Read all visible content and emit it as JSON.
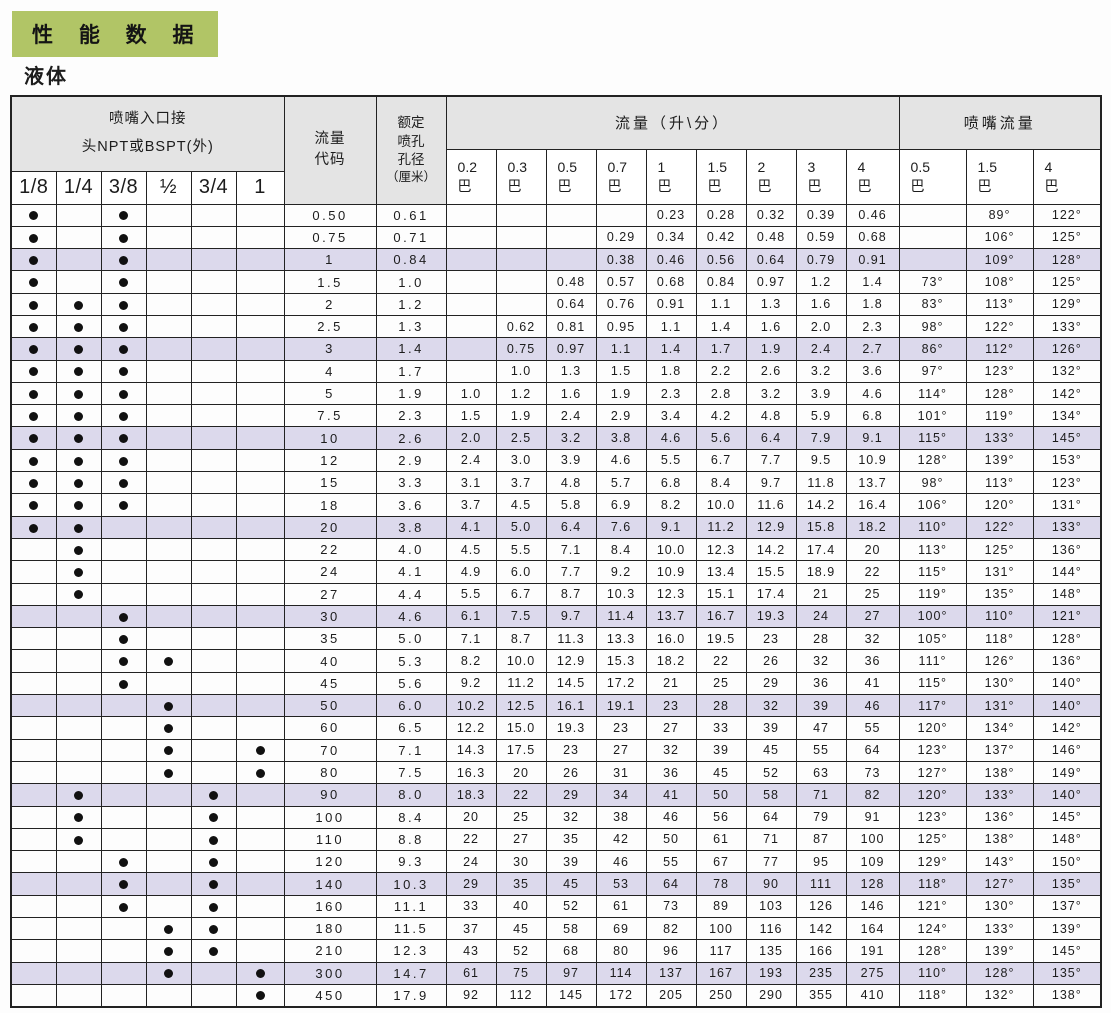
{
  "page": {
    "title": "性 能 数 据",
    "subtitle": "液体"
  },
  "colors": {
    "banner_green": "#b1c566",
    "row_highlight": "#dcd9ec",
    "header_gray": "#e4e4e4"
  },
  "table": {
    "header": {
      "inlet_line1": "喷嘴入口接",
      "inlet_line2": "头NPT或BSPT(外)",
      "code_line1": "流量",
      "code_line2": "代码",
      "orifice_line1": "额定",
      "orifice_line2": "喷孔",
      "orifice_line3": "孔径",
      "orifice_line4": "（厘米）",
      "flow_span_label": "流量（升\\分）",
      "angle_span_label": "喷嘴流量",
      "bar_unit": "巴",
      "thread_sizes": [
        "1/8",
        "1/4",
        "3/8",
        "½",
        "3/4",
        "1"
      ],
      "flow_pressures": [
        "0.2",
        "0.3",
        "0.5",
        "0.7",
        "1",
        "1.5",
        "2",
        "3",
        "4"
      ],
      "angle_pressures": [
        "0.5",
        "1.5",
        "4"
      ]
    },
    "rows": [
      {
        "code": "0.50",
        "orifice": "0.61",
        "threads": [
          1,
          0,
          1,
          0,
          0,
          0
        ],
        "flows": [
          "",
          "",
          "",
          "",
          "0.23",
          "0.28",
          "0.32",
          "0.39",
          "0.46"
        ],
        "angles": [
          "",
          "89°",
          "122°"
        ],
        "highlight": false
      },
      {
        "code": "0.75",
        "orifice": "0.71",
        "threads": [
          1,
          0,
          1,
          0,
          0,
          0
        ],
        "flows": [
          "",
          "",
          "",
          "0.29",
          "0.34",
          "0.42",
          "0.48",
          "0.59",
          "0.68"
        ],
        "angles": [
          "",
          "106°",
          "125°"
        ],
        "highlight": false
      },
      {
        "code": "1",
        "orifice": "0.84",
        "threads": [
          1,
          0,
          1,
          0,
          0,
          0
        ],
        "flows": [
          "",
          "",
          "",
          "0.38",
          "0.46",
          "0.56",
          "0.64",
          "0.79",
          "0.91"
        ],
        "angles": [
          "",
          "109°",
          "128°"
        ],
        "highlight": true
      },
      {
        "code": "1.5",
        "orifice": "1.0",
        "threads": [
          1,
          0,
          1,
          0,
          0,
          0
        ],
        "flows": [
          "",
          "",
          "0.48",
          "0.57",
          "0.68",
          "0.84",
          "0.97",
          "1.2",
          "1.4"
        ],
        "angles": [
          "73°",
          "108°",
          "125°"
        ],
        "highlight": false
      },
      {
        "code": "2",
        "orifice": "1.2",
        "threads": [
          1,
          1,
          1,
          0,
          0,
          0
        ],
        "flows": [
          "",
          "",
          "0.64",
          "0.76",
          "0.91",
          "1.1",
          "1.3",
          "1.6",
          "1.8"
        ],
        "angles": [
          "83°",
          "113°",
          "129°"
        ],
        "highlight": false
      },
      {
        "code": "2.5",
        "orifice": "1.3",
        "threads": [
          1,
          1,
          1,
          0,
          0,
          0
        ],
        "flows": [
          "",
          "0.62",
          "0.81",
          "0.95",
          "1.1",
          "1.4",
          "1.6",
          "2.0",
          "2.3"
        ],
        "angles": [
          "98°",
          "122°",
          "133°"
        ],
        "highlight": false
      },
      {
        "code": "3",
        "orifice": "1.4",
        "threads": [
          1,
          1,
          1,
          0,
          0,
          0
        ],
        "flows": [
          "",
          "0.75",
          "0.97",
          "1.1",
          "1.4",
          "1.7",
          "1.9",
          "2.4",
          "2.7"
        ],
        "angles": [
          "86°",
          "112°",
          "126°"
        ],
        "highlight": true
      },
      {
        "code": "4",
        "orifice": "1.7",
        "threads": [
          1,
          1,
          1,
          0,
          0,
          0
        ],
        "flows": [
          "",
          "1.0",
          "1.3",
          "1.5",
          "1.8",
          "2.2",
          "2.6",
          "3.2",
          "3.6"
        ],
        "angles": [
          "97°",
          "123°",
          "132°"
        ],
        "highlight": false
      },
      {
        "code": "5",
        "orifice": "1.9",
        "threads": [
          1,
          1,
          1,
          0,
          0,
          0
        ],
        "flows": [
          "1.0",
          "1.2",
          "1.6",
          "1.9",
          "2.3",
          "2.8",
          "3.2",
          "3.9",
          "4.6"
        ],
        "angles": [
          "114°",
          "128°",
          "142°"
        ],
        "highlight": false
      },
      {
        "code": "7.5",
        "orifice": "2.3",
        "threads": [
          1,
          1,
          1,
          0,
          0,
          0
        ],
        "flows": [
          "1.5",
          "1.9",
          "2.4",
          "2.9",
          "3.4",
          "4.2",
          "4.8",
          "5.9",
          "6.8"
        ],
        "angles": [
          "101°",
          "119°",
          "134°"
        ],
        "highlight": false
      },
      {
        "code": "10",
        "orifice": "2.6",
        "threads": [
          1,
          1,
          1,
          0,
          0,
          0
        ],
        "flows": [
          "2.0",
          "2.5",
          "3.2",
          "3.8",
          "4.6",
          "5.6",
          "6.4",
          "7.9",
          "9.1"
        ],
        "angles": [
          "115°",
          "133°",
          "145°"
        ],
        "highlight": true
      },
      {
        "code": "12",
        "orifice": "2.9",
        "threads": [
          1,
          1,
          1,
          0,
          0,
          0
        ],
        "flows": [
          "2.4",
          "3.0",
          "3.9",
          "4.6",
          "5.5",
          "6.7",
          "7.7",
          "9.5",
          "10.9"
        ],
        "angles": [
          "128°",
          "139°",
          "153°"
        ],
        "highlight": false
      },
      {
        "code": "15",
        "orifice": "3.3",
        "threads": [
          1,
          1,
          1,
          0,
          0,
          0
        ],
        "flows": [
          "3.1",
          "3.7",
          "4.8",
          "5.7",
          "6.8",
          "8.4",
          "9.7",
          "11.8",
          "13.7"
        ],
        "angles": [
          "98°",
          "113°",
          "123°"
        ],
        "highlight": false
      },
      {
        "code": "18",
        "orifice": "3.6",
        "threads": [
          1,
          1,
          1,
          0,
          0,
          0
        ],
        "flows": [
          "3.7",
          "4.5",
          "5.8",
          "6.9",
          "8.2",
          "10.0",
          "11.6",
          "14.2",
          "16.4"
        ],
        "angles": [
          "106°",
          "120°",
          "131°"
        ],
        "highlight": false
      },
      {
        "code": "20",
        "orifice": "3.8",
        "threads": [
          1,
          1,
          0,
          0,
          0,
          0
        ],
        "flows": [
          "4.1",
          "5.0",
          "6.4",
          "7.6",
          "9.1",
          "11.2",
          "12.9",
          "15.8",
          "18.2"
        ],
        "angles": [
          "110°",
          "122°",
          "133°"
        ],
        "highlight": true
      },
      {
        "code": "22",
        "orifice": "4.0",
        "threads": [
          0,
          1,
          0,
          0,
          0,
          0
        ],
        "flows": [
          "4.5",
          "5.5",
          "7.1",
          "8.4",
          "10.0",
          "12.3",
          "14.2",
          "17.4",
          "20"
        ],
        "angles": [
          "113°",
          "125°",
          "136°"
        ],
        "highlight": false
      },
      {
        "code": "24",
        "orifice": "4.1",
        "threads": [
          0,
          1,
          0,
          0,
          0,
          0
        ],
        "flows": [
          "4.9",
          "6.0",
          "7.7",
          "9.2",
          "10.9",
          "13.4",
          "15.5",
          "18.9",
          "22"
        ],
        "angles": [
          "115°",
          "131°",
          "144°"
        ],
        "highlight": false
      },
      {
        "code": "27",
        "orifice": "4.4",
        "threads": [
          0,
          1,
          0,
          0,
          0,
          0
        ],
        "flows": [
          "5.5",
          "6.7",
          "8.7",
          "10.3",
          "12.3",
          "15.1",
          "17.4",
          "21",
          "25"
        ],
        "angles": [
          "119°",
          "135°",
          "148°"
        ],
        "highlight": false
      },
      {
        "code": "30",
        "orifice": "4.6",
        "threads": [
          0,
          0,
          1,
          0,
          0,
          0
        ],
        "flows": [
          "6.1",
          "7.5",
          "9.7",
          "11.4",
          "13.7",
          "16.7",
          "19.3",
          "24",
          "27"
        ],
        "angles": [
          "100°",
          "110°",
          "121°"
        ],
        "highlight": true
      },
      {
        "code": "35",
        "orifice": "5.0",
        "threads": [
          0,
          0,
          1,
          0,
          0,
          0
        ],
        "flows": [
          "7.1",
          "8.7",
          "11.3",
          "13.3",
          "16.0",
          "19.5",
          "23",
          "28",
          "32"
        ],
        "angles": [
          "105°",
          "118°",
          "128°"
        ],
        "highlight": false
      },
      {
        "code": "40",
        "orifice": "5.3",
        "threads": [
          0,
          0,
          1,
          1,
          0,
          0
        ],
        "flows": [
          "8.2",
          "10.0",
          "12.9",
          "15.3",
          "18.2",
          "22",
          "26",
          "32",
          "36"
        ],
        "angles": [
          "111°",
          "126°",
          "136°"
        ],
        "highlight": false
      },
      {
        "code": "45",
        "orifice": "5.6",
        "threads": [
          0,
          0,
          1,
          0,
          0,
          0
        ],
        "flows": [
          "9.2",
          "11.2",
          "14.5",
          "17.2",
          "21",
          "25",
          "29",
          "36",
          "41"
        ],
        "angles": [
          "115°",
          "130°",
          "140°"
        ],
        "highlight": false
      },
      {
        "code": "50",
        "orifice": "6.0",
        "threads": [
          0,
          0,
          0,
          1,
          0,
          0
        ],
        "flows": [
          "10.2",
          "12.5",
          "16.1",
          "19.1",
          "23",
          "28",
          "32",
          "39",
          "46"
        ],
        "angles": [
          "117°",
          "131°",
          "140°"
        ],
        "highlight": true
      },
      {
        "code": "60",
        "orifice": "6.5",
        "threads": [
          0,
          0,
          0,
          1,
          0,
          0
        ],
        "flows": [
          "12.2",
          "15.0",
          "19.3",
          "23",
          "27",
          "33",
          "39",
          "47",
          "55"
        ],
        "angles": [
          "120°",
          "134°",
          "142°"
        ],
        "highlight": false
      },
      {
        "code": "70",
        "orifice": "7.1",
        "threads": [
          0,
          0,
          0,
          1,
          0,
          1
        ],
        "flows": [
          "14.3",
          "17.5",
          "23",
          "27",
          "32",
          "39",
          "45",
          "55",
          "64"
        ],
        "angles": [
          "123°",
          "137°",
          "146°"
        ],
        "highlight": false
      },
      {
        "code": "80",
        "orifice": "7.5",
        "threads": [
          0,
          0,
          0,
          1,
          0,
          1
        ],
        "flows": [
          "16.3",
          "20",
          "26",
          "31",
          "36",
          "45",
          "52",
          "63",
          "73"
        ],
        "angles": [
          "127°",
          "138°",
          "149°"
        ],
        "highlight": false
      },
      {
        "code": "90",
        "orifice": "8.0",
        "threads": [
          0,
          1,
          0,
          0,
          1,
          0
        ],
        "flows": [
          "18.3",
          "22",
          "29",
          "34",
          "41",
          "50",
          "58",
          "71",
          "82"
        ],
        "angles": [
          "120°",
          "133°",
          "140°"
        ],
        "highlight": true
      },
      {
        "code": "100",
        "orifice": "8.4",
        "threads": [
          0,
          1,
          0,
          0,
          1,
          0
        ],
        "flows": [
          "20",
          "25",
          "32",
          "38",
          "46",
          "56",
          "64",
          "79",
          "91"
        ],
        "angles": [
          "123°",
          "136°",
          "145°"
        ],
        "highlight": false
      },
      {
        "code": "110",
        "orifice": "8.8",
        "threads": [
          0,
          1,
          0,
          0,
          1,
          0
        ],
        "flows": [
          "22",
          "27",
          "35",
          "42",
          "50",
          "61",
          "71",
          "87",
          "100"
        ],
        "angles": [
          "125°",
          "138°",
          "148°"
        ],
        "highlight": false
      },
      {
        "code": "120",
        "orifice": "9.3",
        "threads": [
          0,
          0,
          1,
          0,
          1,
          0
        ],
        "flows": [
          "24",
          "30",
          "39",
          "46",
          "55",
          "67",
          "77",
          "95",
          "109"
        ],
        "angles": [
          "129°",
          "143°",
          "150°"
        ],
        "highlight": false
      },
      {
        "code": "140",
        "orifice": "10.3",
        "threads": [
          0,
          0,
          1,
          0,
          1,
          0
        ],
        "flows": [
          "29",
          "35",
          "45",
          "53",
          "64",
          "78",
          "90",
          "111",
          "128"
        ],
        "angles": [
          "118°",
          "127°",
          "135°"
        ],
        "highlight": true
      },
      {
        "code": "160",
        "orifice": "11.1",
        "threads": [
          0,
          0,
          1,
          0,
          1,
          0
        ],
        "flows": [
          "33",
          "40",
          "52",
          "61",
          "73",
          "89",
          "103",
          "126",
          "146"
        ],
        "angles": [
          "121°",
          "130°",
          "137°"
        ],
        "highlight": false
      },
      {
        "code": "180",
        "orifice": "11.5",
        "threads": [
          0,
          0,
          0,
          1,
          1,
          0
        ],
        "flows": [
          "37",
          "45",
          "58",
          "69",
          "82",
          "100",
          "116",
          "142",
          "164"
        ],
        "angles": [
          "124°",
          "133°",
          "139°"
        ],
        "highlight": false
      },
      {
        "code": "210",
        "orifice": "12.3",
        "threads": [
          0,
          0,
          0,
          1,
          1,
          0
        ],
        "flows": [
          "43",
          "52",
          "68",
          "80",
          "96",
          "117",
          "135",
          "166",
          "191"
        ],
        "angles": [
          "128°",
          "139°",
          "145°"
        ],
        "highlight": false
      },
      {
        "code": "300",
        "orifice": "14.7",
        "threads": [
          0,
          0,
          0,
          1,
          0,
          1
        ],
        "flows": [
          "61",
          "75",
          "97",
          "114",
          "137",
          "167",
          "193",
          "235",
          "275"
        ],
        "angles": [
          "110°",
          "128°",
          "135°"
        ],
        "highlight": true
      },
      {
        "code": "450",
        "orifice": "17.9",
        "threads": [
          0,
          0,
          0,
          0,
          0,
          1
        ],
        "flows": [
          "92",
          "112",
          "145",
          "172",
          "205",
          "250",
          "290",
          "355",
          "410"
        ],
        "angles": [
          "118°",
          "132°",
          "138°"
        ],
        "highlight": false
      }
    ]
  }
}
